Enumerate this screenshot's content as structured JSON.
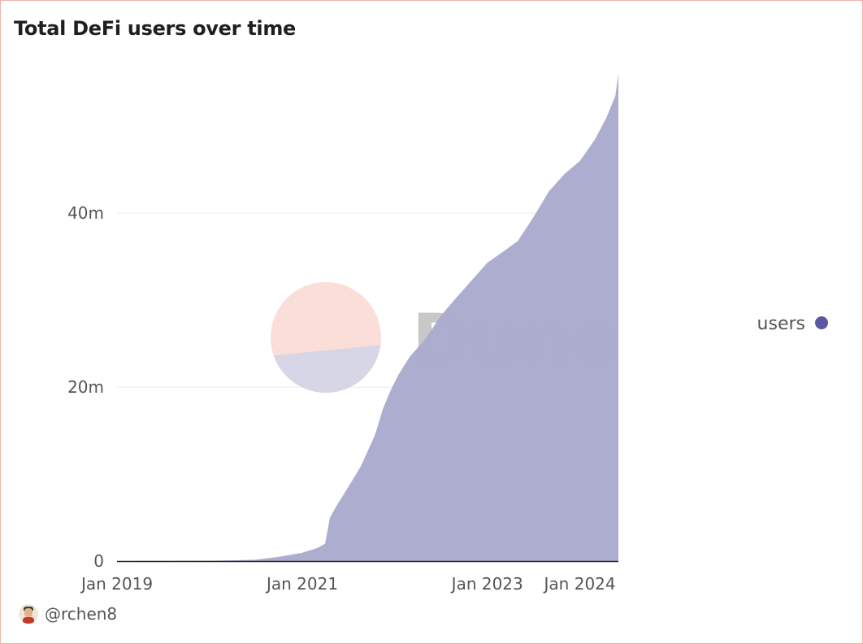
{
  "title": "Total DeFi users over time",
  "author": {
    "handle": "@rchen8",
    "avatar_icon": "user-avatar-icon"
  },
  "watermark": {
    "text": "Dune",
    "top_color": "#fbded7",
    "bottom_color": "#d7d6e6"
  },
  "chart_data": {
    "type": "area",
    "title": "Total DeFi users over time",
    "xlabel": "",
    "ylabel": "",
    "x_tick_labels": [
      "Jan 2019",
      "Jan 2021",
      "Jan 2023",
      "Jan 2024"
    ],
    "x_tick_values": [
      "2019-01-01",
      "2021-01-01",
      "2023-01-01",
      "2024-01-01"
    ],
    "y_tick_labels": [
      "0",
      "20m",
      "40m"
    ],
    "y_tick_values": [
      0,
      20000000,
      40000000
    ],
    "xlim": [
      "2019-01-01",
      "2024-06-01"
    ],
    "ylim": [
      0,
      56000000
    ],
    "grid": true,
    "legend_position": "right",
    "series": [
      {
        "name": "users",
        "color": "#5a58a0",
        "fill": "#aaaacd",
        "points": [
          [
            "2019-01-01",
            0
          ],
          [
            "2019-07-01",
            10000
          ],
          [
            "2020-01-01",
            40000
          ],
          [
            "2020-04-01",
            80000
          ],
          [
            "2020-07-01",
            150000
          ],
          [
            "2020-10-01",
            500000
          ],
          [
            "2021-01-01",
            950000
          ],
          [
            "2021-03-01",
            1500000
          ],
          [
            "2021-04-01",
            2000000
          ],
          [
            "2021-04-20",
            5000000
          ],
          [
            "2021-05-15",
            6300000
          ],
          [
            "2021-07-01",
            8500000
          ],
          [
            "2021-08-20",
            10900000
          ],
          [
            "2021-10-15",
            14500000
          ],
          [
            "2021-11-15",
            17500000
          ],
          [
            "2021-12-15",
            19600000
          ],
          [
            "2022-01-15",
            21400000
          ],
          [
            "2022-03-01",
            23500000
          ],
          [
            "2022-05-01",
            25500000
          ],
          [
            "2022-07-01",
            28200000
          ],
          [
            "2022-09-01",
            30300000
          ],
          [
            "2022-11-01",
            32300000
          ],
          [
            "2023-01-01",
            34300000
          ],
          [
            "2023-03-01",
            35500000
          ],
          [
            "2023-05-01",
            36800000
          ],
          [
            "2023-07-01",
            39500000
          ],
          [
            "2023-09-01",
            42500000
          ],
          [
            "2023-11-01",
            44500000
          ],
          [
            "2024-01-01",
            46000000
          ],
          [
            "2024-03-01",
            48500000
          ],
          [
            "2024-04-15",
            51000000
          ],
          [
            "2024-05-20",
            53500000
          ],
          [
            "2024-06-01",
            56000000
          ]
        ]
      }
    ]
  }
}
